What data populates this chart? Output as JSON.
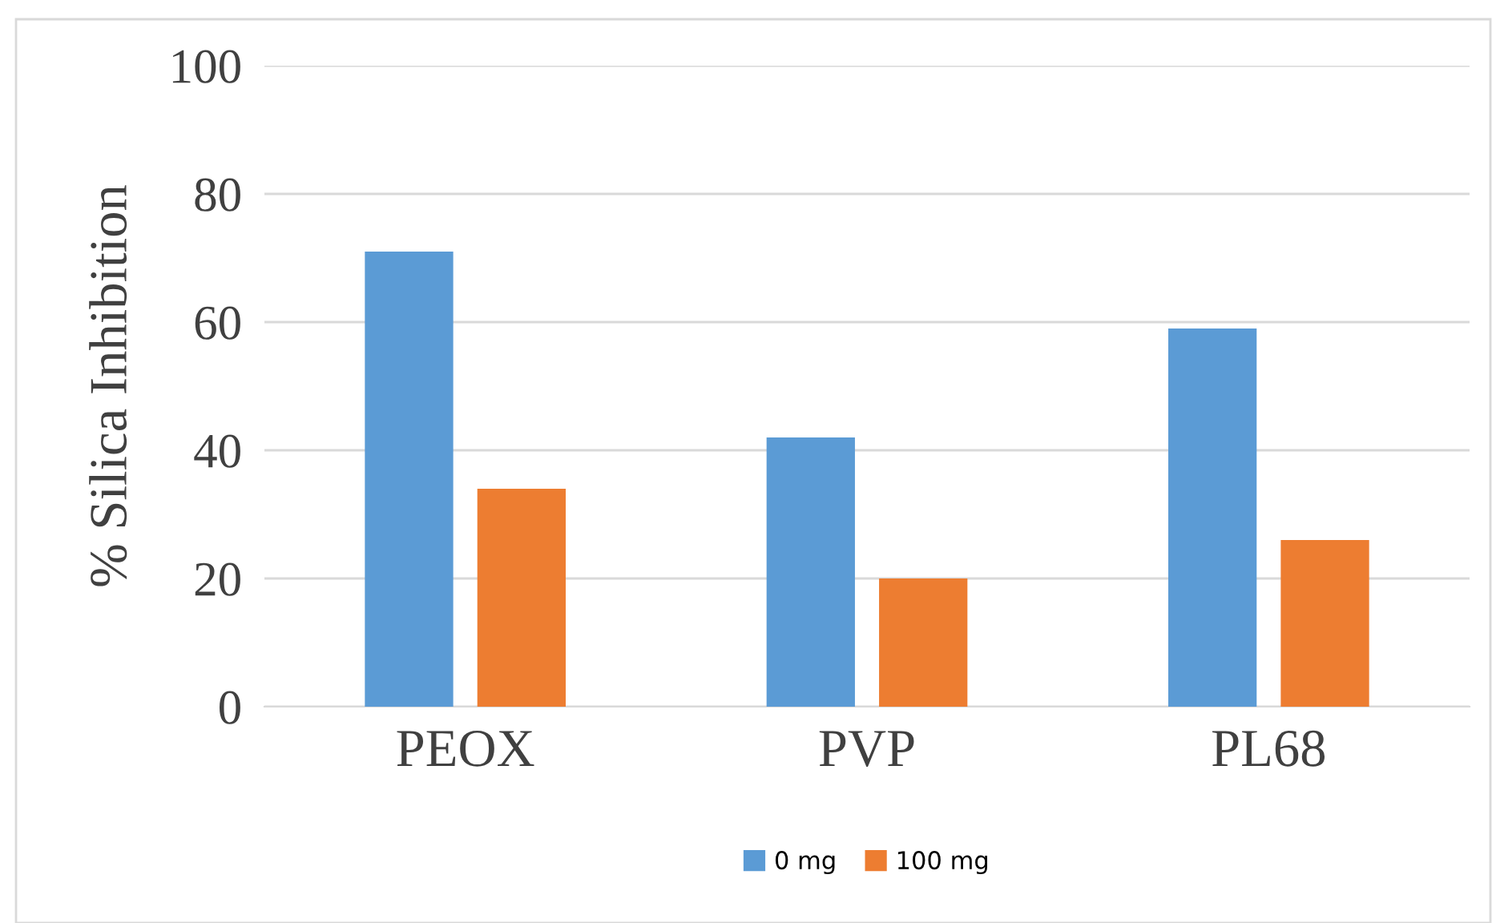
{
  "chart_data": {
    "type": "bar",
    "ylabel": "% Silica Inhibition",
    "categories": [
      "PEOX",
      "PVP",
      "PL68"
    ],
    "series": [
      {
        "name": "0 mg",
        "color": "#5b9bd5",
        "values": [
          71,
          42,
          59
        ]
      },
      {
        "name": "100 mg",
        "color": "#ed7d31",
        "values": [
          34,
          20,
          26
        ]
      }
    ],
    "ylim": [
      0,
      100
    ],
    "yticks": [
      0,
      20,
      40,
      60,
      80,
      100
    ],
    "grid": "y",
    "legend": "bottom"
  }
}
